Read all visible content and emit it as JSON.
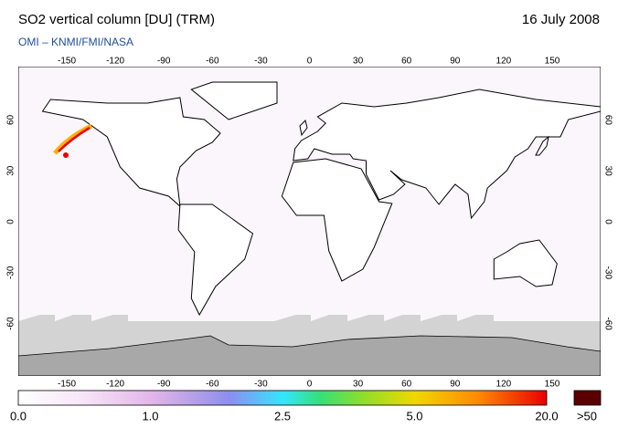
{
  "header": {
    "title": "SO2 vertical column [DU] (TRM)",
    "date": "16 July 2008",
    "source": "OMI  –  KNMI/FMI/NASA"
  },
  "map": {
    "lon_labels": [
      "-150",
      "-120",
      "-90",
      "-60",
      "-30",
      "0",
      "30",
      "60",
      "90",
      "120",
      "150"
    ],
    "lat_labels": [
      "60",
      "30",
      "0",
      "-30",
      "-60"
    ]
  },
  "colorbar": {
    "labels": [
      "0.0",
      "1.0",
      "2.5",
      "5.0",
      "20.0"
    ],
    "overflow_label": ">50"
  }
}
